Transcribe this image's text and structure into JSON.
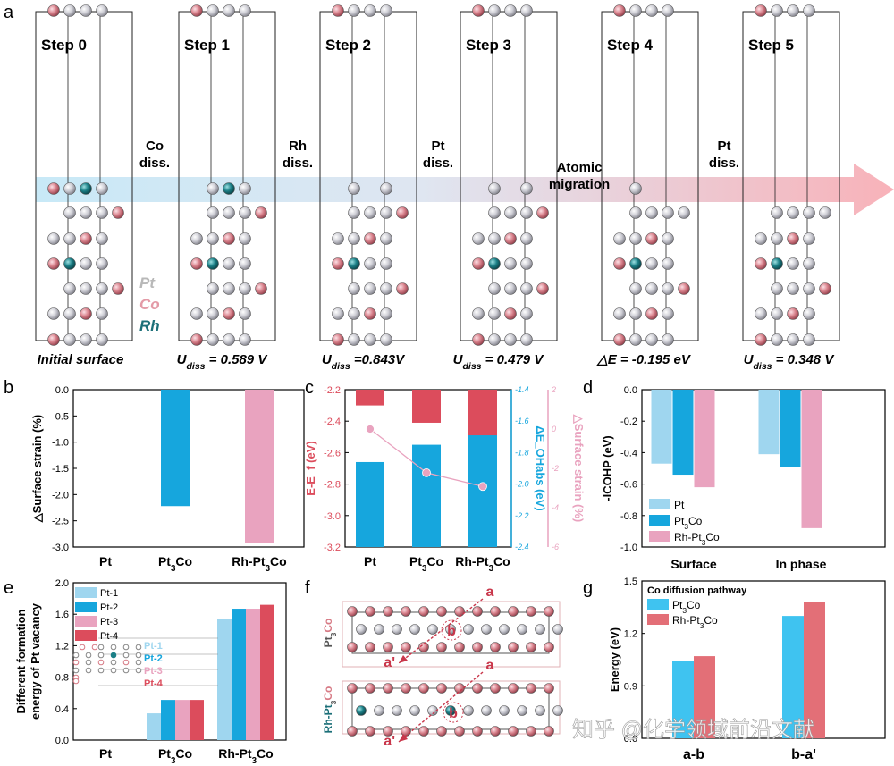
{
  "panel_a": {
    "letter": "a",
    "steps": [
      "Step 0",
      "Step 1",
      "Step 2",
      "Step 3",
      "Step 4",
      "Step 5"
    ],
    "captions": [
      "Initial surface",
      "U_diss = 0.589 V",
      "U_diss =0.843V",
      "U_diss = 0.479 V",
      "△E = -0.195 eV",
      "U_diss = 0.348 V"
    ],
    "caption_parts": [
      {
        "pre": "Initial surface",
        "sub": "",
        "post": ""
      },
      {
        "pre": "U",
        "sub": "diss",
        "post": " = 0.589 V"
      },
      {
        "pre": "U",
        "sub": "diss",
        "post": " =0.843V"
      },
      {
        "pre": "U",
        "sub": "diss",
        "post": " = 0.479 V"
      },
      {
        "pre": "△E = -0.195 eV",
        "sub": "",
        "post": ""
      },
      {
        "pre": "U",
        "sub": "diss",
        "post": " = 0.348 V"
      }
    ],
    "arrow_labels": [
      [
        "Co",
        "diss."
      ],
      [
        "Rh",
        "diss."
      ],
      [
        "Pt",
        "diss."
      ],
      [
        "Atomic",
        "migration"
      ],
      [
        "Pt",
        "diss."
      ]
    ],
    "legend": [
      "Pt",
      "Co",
      "Rh"
    ]
  },
  "panel_b": {
    "letter": "b",
    "ylabel": "△Surface strain (%)",
    "categories": [
      "Pt",
      "Pt3Co",
      "Rh-Pt3Co"
    ],
    "ticks": [
      "0.0",
      "-0.5",
      "-1.0",
      "-1.5",
      "-2.0",
      "-2.5",
      "-3.0"
    ]
  },
  "panel_c": {
    "letter": "c",
    "ylabel_left": "E-E_f (eV)",
    "ylabel_mid": "ΔE_OHabs (eV)",
    "ylabel_right": "△Surface strain (%)",
    "categories": [
      "Pt",
      "Pt3Co",
      "Rh-Pt3Co"
    ],
    "ticks_left": [
      "-2.2",
      "-2.4",
      "-2.6",
      "-2.8",
      "-3.0",
      "-3.2"
    ],
    "ticks_mid": [
      "-2.4",
      "-2.2",
      "-2.0",
      "-1.8",
      "-1.6",
      "-1.4"
    ],
    "ticks_right": [
      "2",
      "0",
      "-2",
      "-4",
      "-6"
    ]
  },
  "panel_d": {
    "letter": "d",
    "ylabel": "-ICOHP (eV)",
    "categories": [
      "Surface",
      "In phase"
    ],
    "legend": [
      "Pt",
      "Pt3Co",
      "Rh-Pt3Co"
    ],
    "ticks": [
      "0.0",
      "-0.2",
      "-0.4",
      "-0.6",
      "-0.8",
      "-1.0"
    ]
  },
  "panel_e": {
    "letter": "e",
    "ylabel1": "Different formation",
    "ylabel2": "energy of Pt vacancy",
    "categories": [
      "Pt",
      "Pt3Co",
      "Rh-Pt3Co"
    ],
    "legend": [
      "Pt-1",
      "Pt-2",
      "Pt-3",
      "Pt-4"
    ],
    "inset_labels": [
      "Pt-1",
      "Pt-2",
      "Pt-3",
      "Pt-4"
    ],
    "ticks": [
      "2.0",
      "1.6",
      "1.2",
      "0.8",
      "0.4",
      "0.0"
    ]
  },
  "panel_f": {
    "letter": "f",
    "row_labels": [
      "Pt3Co",
      "Rh-Pt3Co"
    ],
    "site_labels": [
      "a",
      "b",
      "a'"
    ]
  },
  "panel_g": {
    "letter": "g",
    "ylabel": "Energy (eV)",
    "legend_title": "Co diffusion pathway",
    "legend": [
      "Pt3Co",
      "Rh-Pt3Co"
    ],
    "categories": [
      "a-b",
      "b-a'"
    ],
    "ticks": [
      "1.5",
      "1.2",
      "0.9",
      "0.6"
    ]
  },
  "watermark": "知乎 @化学领域前沿文献",
  "chart_data": [
    {
      "type": "bar",
      "panel": "b",
      "categories": [
        "Pt",
        "Pt3Co",
        "Rh-Pt3Co"
      ],
      "values": [
        0,
        -2.22,
        -2.92
      ],
      "ylabel": "△Surface strain (%)",
      "ylim": [
        -3.0,
        0.0
      ],
      "colors": [
        "#9fd6ef",
        "#16a6dd",
        "#e9a3bf"
      ]
    },
    {
      "type": "bar",
      "panel": "c",
      "categories": [
        "Pt",
        "Pt3Co",
        "Rh-Pt3Co"
      ],
      "series": [
        {
          "values": [
            -2.3,
            -2.41,
            -2.64
          ],
          "axis": "E-E_f (eV)",
          "ylim": [
            -3.2,
            -2.2
          ],
          "color": "#dc4c5c"
        },
        {
          "values": [
            -1.86,
            -1.75,
            -1.69
          ],
          "axis": "ΔE_OHabs (eV)",
          "ylim": [
            -2.4,
            -1.4
          ],
          "color": "#16a6dd"
        },
        {
          "values": [
            0,
            -2.22,
            -2.92
          ],
          "axis": "△Surface strain (%)",
          "ylim": [
            -6,
            2
          ],
          "color": "#e9a3bf",
          "type": "line"
        }
      ]
    },
    {
      "type": "bar",
      "panel": "d",
      "categories": [
        "Surface",
        "In phase"
      ],
      "series": [
        {
          "name": "Pt",
          "values": [
            -0.47,
            -0.41
          ],
          "color": "#9fd6ef"
        },
        {
          "name": "Pt3Co",
          "values": [
            -0.54,
            -0.49
          ],
          "color": "#16a6dd"
        },
        {
          "name": "Rh-Pt3Co",
          "values": [
            -0.62,
            -0.88
          ],
          "color": "#e9a3bf"
        }
      ],
      "ylabel": "-ICOHP (eV)",
      "ylim": [
        -1.0,
        0.0
      ]
    },
    {
      "type": "bar",
      "panel": "e",
      "categories": [
        "Pt",
        "Pt3Co",
        "Rh-Pt3Co"
      ],
      "series": [
        {
          "name": "Pt-1",
          "values": [
            0,
            0.34,
            1.54
          ],
          "color": "#9fd6ef"
        },
        {
          "name": "Pt-2",
          "values": [
            0,
            0.51,
            1.67
          ],
          "color": "#16a6dd"
        },
        {
          "name": "Pt-3",
          "values": [
            0,
            0.51,
            1.67
          ],
          "color": "#e9a3bf"
        },
        {
          "name": "Pt-4",
          "values": [
            0,
            0.51,
            1.72
          ],
          "color": "#dc4c5c"
        }
      ],
      "ylim": [
        0,
        2.0
      ]
    },
    {
      "type": "bar",
      "panel": "g",
      "categories": [
        "a-b",
        "b-a'"
      ],
      "series": [
        {
          "name": "Pt3Co",
          "values": [
            1.04,
            1.3
          ],
          "color": "#3fc3f0"
        },
        {
          "name": "Rh-Pt3Co",
          "values": [
            1.07,
            1.38
          ],
          "color": "#e36f77"
        }
      ],
      "ylabel": "Energy (eV)",
      "ylim": [
        0.6,
        1.5
      ]
    }
  ],
  "colors": {
    "pt": "#c9c9cf",
    "co": "#d77a85",
    "rh": "#1b7f86",
    "arrow_start": "#c6e8f6",
    "arrow_end": "#f7b7bf"
  }
}
